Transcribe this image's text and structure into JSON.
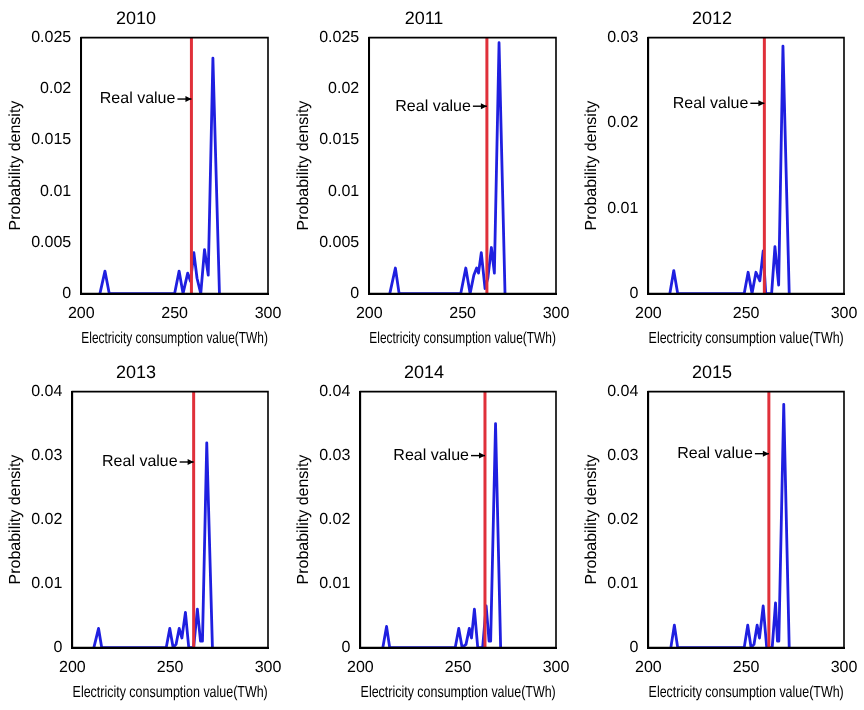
{
  "chart_data": [
    {
      "type": "line",
      "title": "2010",
      "xlabel": "Electricity consumption value(TWh)",
      "ylabel": "Probability density",
      "xlim": [
        200,
        300
      ],
      "xticks": [
        200,
        250,
        300
      ],
      "ylim": [
        0,
        0.025
      ],
      "yticks": [
        0,
        0.005,
        0.01,
        0.015,
        0.02,
        0.025
      ],
      "legend": false,
      "color": "#1f1fe0",
      "x": [
        210,
        212.7,
        215,
        250,
        252.4,
        254.5,
        257,
        258.5,
        260.3,
        262,
        264,
        266,
        268,
        270.5,
        274
      ],
      "values": [
        0,
        0.0022,
        0,
        0,
        0.0022,
        0,
        0.002,
        0.0012,
        0.004,
        0.0015,
        0,
        0.0043,
        0.0018,
        0.023,
        0
      ],
      "ref_lines": [
        {
          "axis": "x",
          "value": 259,
          "color": "#e0303a"
        }
      ],
      "annotations": [
        {
          "text": "Real value",
          "x": 259,
          "y": 0.019
        }
      ]
    },
    {
      "type": "line",
      "title": "2011",
      "xlabel": "Electricity consumption value(TWh)",
      "ylabel": "Probability density",
      "xlim": [
        200,
        300
      ],
      "xticks": [
        200,
        250,
        300
      ],
      "ylim": [
        0,
        0.025
      ],
      "yticks": [
        0,
        0.005,
        0.01,
        0.015,
        0.02,
        0.025
      ],
      "legend": false,
      "color": "#1f1fe0",
      "x": [
        211,
        214,
        216,
        249,
        251.7,
        254,
        256,
        257.5,
        258.5,
        260,
        262,
        263.5,
        265.4,
        267,
        269.5,
        272.7
      ],
      "values": [
        0,
        0.0025,
        0,
        0,
        0.0025,
        0,
        0.0018,
        0.0025,
        0.002,
        0.004,
        0.0005,
        0.0015,
        0.0045,
        0.002,
        0.0245,
        0
      ],
      "ref_lines": [
        {
          "axis": "x",
          "value": 263,
          "color": "#e0303a"
        }
      ],
      "annotations": [
        {
          "text": "Real value",
          "x": 263,
          "y": 0.0183
        }
      ]
    },
    {
      "type": "line",
      "title": "2012",
      "xlabel": "Electricity consumption value(TWh)",
      "ylabel": "Probability density",
      "xlim": [
        200,
        300
      ],
      "xticks": [
        200,
        250,
        300
      ],
      "ylim": [
        0,
        0.03
      ],
      "yticks": [
        0,
        0.01,
        0.02,
        0.03
      ],
      "legend": false,
      "color": "#1f1fe0",
      "x": [
        211,
        213,
        215,
        249,
        251,
        253,
        255,
        257,
        258.7,
        260,
        263,
        264.7,
        266.6,
        268.8,
        272
      ],
      "values": [
        0,
        0.0027,
        0,
        0,
        0.0025,
        0,
        0.0025,
        0.0015,
        0.005,
        0,
        0,
        0.0055,
        0.001,
        0.029,
        0
      ],
      "ref_lines": [
        {
          "axis": "x",
          "value": 259.3,
          "color": "#e0303a"
        }
      ],
      "annotations": [
        {
          "text": "Real value",
          "x": 259.3,
          "y": 0.0223
        }
      ]
    },
    {
      "type": "line",
      "title": "2013",
      "xlabel": "Electricity consumption value(TWh)",
      "ylabel": "Probability density",
      "xlim": [
        200,
        300
      ],
      "xticks": [
        200,
        250,
        300
      ],
      "ylim": [
        0,
        0.04
      ],
      "yticks": [
        0,
        0.01,
        0.02,
        0.03,
        0.04
      ],
      "legend": false,
      "color": "#1f1fe0",
      "x": [
        211,
        213.4,
        215,
        248,
        249.8,
        251.5,
        253,
        254.6,
        256,
        257.8,
        259.5,
        262,
        263.9,
        265.5,
        266.5,
        268.7,
        271.6
      ],
      "values": [
        0,
        0.003,
        0,
        0,
        0.003,
        0,
        0.0005,
        0.003,
        0.0015,
        0.0055,
        0,
        0,
        0.006,
        0.001,
        0.001,
        0.032,
        0
      ],
      "ref_lines": [
        {
          "axis": "x",
          "value": 262,
          "color": "#e0303a"
        }
      ],
      "annotations": [
        {
          "text": "Real value",
          "x": 262,
          "y": 0.029
        }
      ]
    },
    {
      "type": "line",
      "title": "2014",
      "xlabel": "Electricity consumption value(TWh)",
      "ylabel": "Probability density",
      "xlim": [
        200,
        300
      ],
      "xticks": [
        200,
        250,
        300
      ],
      "ylim": [
        0,
        0.04
      ],
      "yticks": [
        0,
        0.01,
        0.02,
        0.03,
        0.04
      ],
      "legend": false,
      "color": "#1f1fe0",
      "x": [
        211.5,
        213.4,
        215,
        248.5,
        250.3,
        252,
        254,
        255.7,
        256.8,
        258.3,
        260,
        262.5,
        264.3,
        265.8,
        266.6,
        269.1,
        271.7
      ],
      "values": [
        0,
        0.0033,
        0,
        0,
        0.003,
        0,
        0.0005,
        0.003,
        0.0015,
        0.006,
        0,
        0,
        0.0065,
        0.001,
        0.001,
        0.035,
        0
      ],
      "ref_lines": [
        {
          "axis": "x",
          "value": 263.7,
          "color": "#e0303a"
        }
      ],
      "annotations": [
        {
          "text": "Real value",
          "x": 263.7,
          "y": 0.03
        }
      ]
    },
    {
      "type": "line",
      "title": "2015",
      "xlabel": "Electricity consumption value(TWh)",
      "ylabel": "Probability density",
      "xlim": [
        200,
        300
      ],
      "xticks": [
        200,
        250,
        300
      ],
      "ylim": [
        0,
        0.04
      ],
      "yticks": [
        0,
        0.01,
        0.02,
        0.03,
        0.04
      ],
      "legend": false,
      "color": "#1f1fe0",
      "x": [
        211.5,
        213.3,
        215,
        249,
        250.8,
        252.5,
        254,
        255.6,
        256.8,
        258.7,
        260.5,
        263.3,
        265,
        266,
        266.7,
        269.2,
        272
      ],
      "values": [
        0,
        0.0035,
        0,
        0,
        0.0035,
        0,
        0.0005,
        0.0035,
        0.0015,
        0.0065,
        0,
        0,
        0.007,
        0.001,
        0.001,
        0.038,
        0
      ],
      "ref_lines": [
        {
          "axis": "x",
          "value": 261.6,
          "color": "#e0303a"
        }
      ],
      "annotations": [
        {
          "text": "Real value",
          "x": 261.6,
          "y": 0.0303
        }
      ]
    }
  ]
}
